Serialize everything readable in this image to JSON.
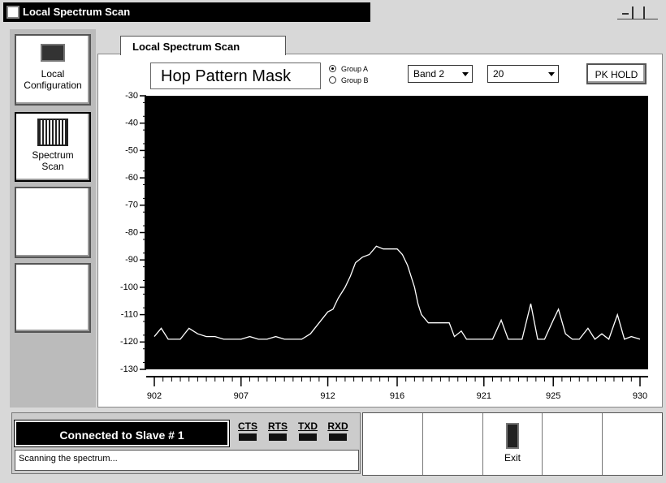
{
  "window": {
    "title": "Local Spectrum Scan"
  },
  "sidebar": [
    {
      "label": "Local Configuration"
    },
    {
      "label": "Spectrum Scan"
    }
  ],
  "tab": {
    "label": "Local Spectrum Scan"
  },
  "controls": {
    "mask_label": "Hop Pattern Mask",
    "radios": [
      {
        "label": "Group A",
        "selected": true
      },
      {
        "label": "Group B",
        "selected": false
      }
    ],
    "band": "Band 2",
    "count": "20",
    "button": "PK HOLD"
  },
  "chart_data": {
    "type": "line",
    "color": "#ffffff",
    "background": "#000000",
    "x": [
      902,
      902.4,
      902.8,
      903.5,
      904,
      904.5,
      905,
      905.5,
      906,
      906.5,
      907,
      907.5,
      908,
      908.5,
      909,
      909.5,
      910,
      910.5,
      911,
      911.5,
      912,
      912.3,
      912.6,
      913,
      913.3,
      913.6,
      914,
      914.4,
      914.8,
      915.2,
      915.6,
      916,
      916.3,
      916.6,
      917,
      917.2,
      917.4,
      917.8,
      918.2,
      918.6,
      919,
      919.3,
      919.7,
      920,
      920.5,
      921,
      921.5,
      922,
      922.4,
      922.8,
      923.2,
      923.7,
      924.1,
      924.5,
      925,
      925.3,
      925.7,
      926.1,
      926.5,
      927,
      927.4,
      927.8,
      928.2,
      928.7,
      929.1,
      929.5,
      930
    ],
    "values": [
      -118,
      -115,
      -119,
      -119,
      -115,
      -117,
      -118,
      -118,
      -119,
      -119,
      -119,
      -118,
      -119,
      -119,
      -118,
      -119,
      -119,
      -119,
      -117,
      -113,
      -109,
      -108,
      -104,
      -100,
      -96,
      -91,
      -89,
      -88,
      -85,
      -86,
      -86,
      -86,
      -88,
      -92,
      -100,
      -106,
      -110,
      -113,
      -113,
      -113,
      -113,
      -118,
      -116,
      -119,
      -119,
      -119,
      -119,
      -112,
      -119,
      -119,
      -119,
      -106,
      -119,
      -119,
      -112,
      -108,
      -117,
      -119,
      -119,
      -115,
      -119,
      -117,
      -119,
      -110,
      -119,
      -118,
      -119
    ],
    "xlim": [
      902,
      930
    ],
    "ylim": [
      -130,
      -30
    ],
    "xticks": [
      902,
      907,
      912,
      916,
      921,
      925,
      930
    ],
    "yticks": [
      -30,
      -40,
      -50,
      -60,
      -70,
      -80,
      -90,
      -100,
      -110,
      -120,
      -130
    ]
  },
  "status": {
    "connection": "Connected to Slave # 1",
    "signals": [
      "CTS",
      "RTS",
      "TXD",
      "RXD"
    ],
    "message": "Scanning the spectrum...",
    "exit": "Exit"
  }
}
